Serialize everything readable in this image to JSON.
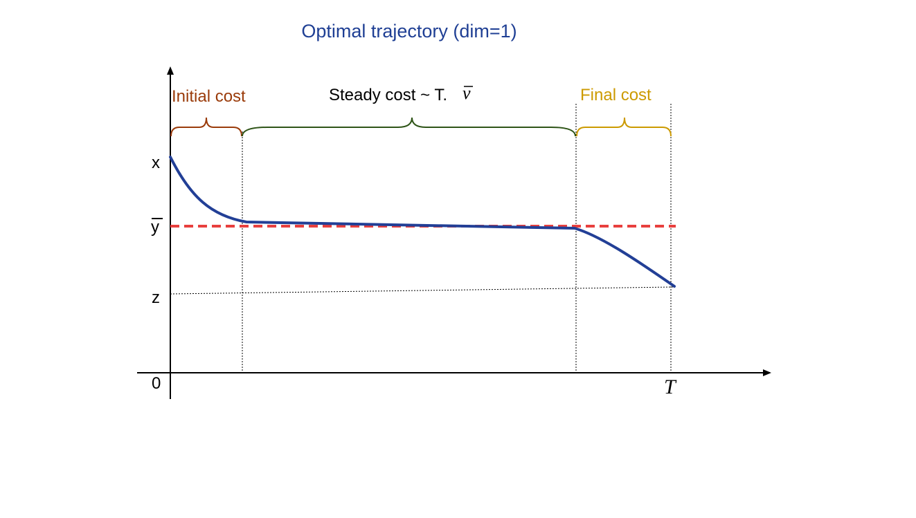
{
  "title": "Optimal trajectory (dim=1)",
  "phases": {
    "initial": "Initial cost",
    "steady": "Steady cost ~ T.",
    "steady_symbol": "ν",
    "final": "Final cost"
  },
  "axis_labels": {
    "x": "x",
    "ybar": "y",
    "z": "z",
    "origin": "0",
    "T": "T"
  },
  "colors": {
    "title": "#1f3f94",
    "trajectory": "#223f96",
    "target_line": "#e8403e",
    "initial": "#9a3b0a",
    "steady": "#2e5417",
    "final": "#cc9a00",
    "axis": "#000000"
  }
}
